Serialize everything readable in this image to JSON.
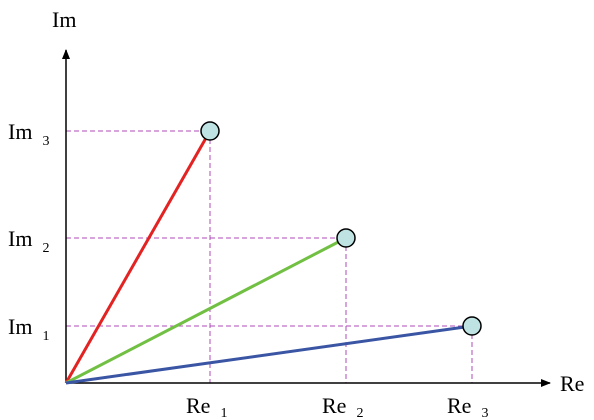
{
  "axes": {
    "x_label": "Re",
    "y_label": "Im",
    "axis_color": "#000000"
  },
  "guide_color": "#b04ab8",
  "point_fill": "#bfe3e3",
  "labels": {
    "im1": {
      "main": "Im",
      "sub": "1"
    },
    "im2": {
      "main": "Im",
      "sub": "2"
    },
    "im3": {
      "main": "Im",
      "sub": "3"
    },
    "re1": {
      "main": "Re",
      "sub": "1"
    },
    "re2": {
      "main": "Re",
      "sub": "2"
    },
    "re3": {
      "main": "Re",
      "sub": "3"
    }
  },
  "vectors": [
    {
      "id": "vector-1",
      "color": "#e32322",
      "re": "Re 1",
      "im": "Im 3"
    },
    {
      "id": "vector-2",
      "color": "#71c043",
      "re": "Re 2",
      "im": "Im 2"
    },
    {
      "id": "vector-3",
      "color": "#3a55a4",
      "re": "Re 3",
      "im": "Im 1"
    }
  ]
}
